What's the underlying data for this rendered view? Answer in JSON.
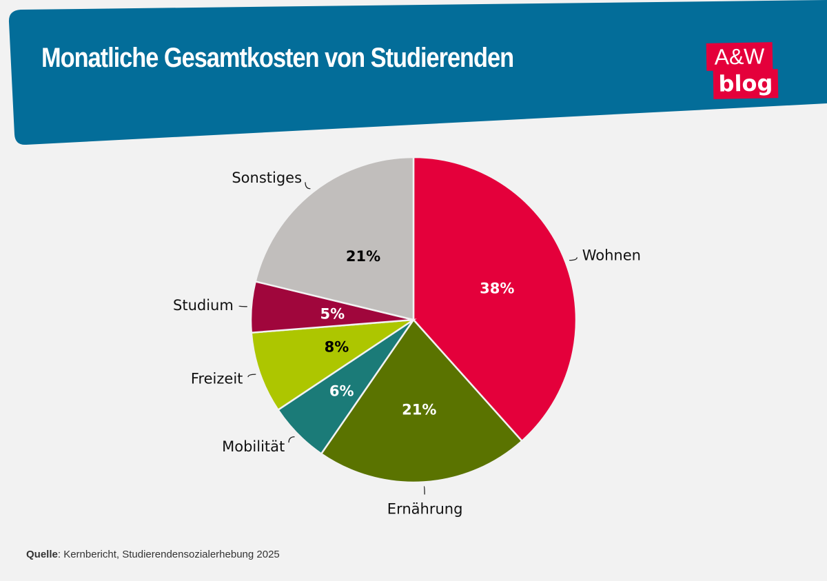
{
  "title": "Monatliche Gesamtkosten von Studierenden",
  "logo": {
    "line1": "A&W",
    "line2": "blog"
  },
  "colors": {
    "header": "#036d99",
    "background": "#f2f2f2",
    "logo": "#e4003b"
  },
  "chart_data": {
    "type": "pie",
    "title": "Monatliche Gesamtkosten von Studierenden",
    "start": "top",
    "direction": "clockwise",
    "unit": "%",
    "slices": [
      {
        "label": "Wohnen",
        "value": 38,
        "display": "38%",
        "color": "#e4003b",
        "text_color": "#ffffff"
      },
      {
        "label": "Ernährung",
        "value": 21,
        "display": "21%",
        "color": "#5a7300",
        "text_color": "#ffffff"
      },
      {
        "label": "Mobilität",
        "value": 6,
        "display": "6%",
        "color": "#1b7b78",
        "text_color": "#ffffff"
      },
      {
        "label": "Freizeit",
        "value": 8,
        "display": "8%",
        "color": "#adc600",
        "text_color": "#000000"
      },
      {
        "label": "Studium",
        "value": 5,
        "display": "5%",
        "color": "#a0063c",
        "text_color": "#ffffff"
      },
      {
        "label": "Sonstiges",
        "value": 21,
        "display": "21%",
        "color": "#c1bebc",
        "text_color": "#000000"
      }
    ]
  },
  "source": {
    "label": "Quelle",
    "text": ": Kernbericht, Studierendensozialerhebung 2025"
  }
}
